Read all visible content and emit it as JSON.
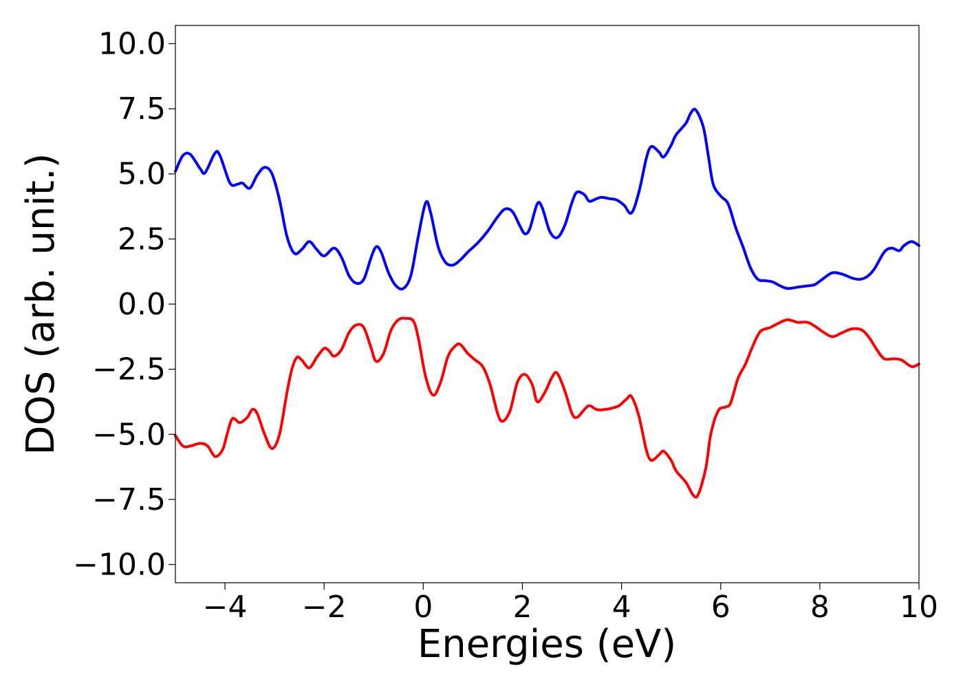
{
  "chart_data": {
    "type": "line",
    "title": "",
    "xlabel": "Energies (eV)",
    "ylabel": "DOS (arb. unit.)",
    "xlim": [
      -5,
      10
    ],
    "ylim": [
      -10.7,
      10.7
    ],
    "x_ticks": [
      -4,
      -2,
      0,
      2,
      4,
      6,
      8,
      10
    ],
    "x_tick_labels": [
      "−4",
      "−2",
      "0",
      "2",
      "4",
      "6",
      "8",
      "10"
    ],
    "y_ticks": [
      10.0,
      7.5,
      5.0,
      2.5,
      0.0,
      -2.5,
      -5.0,
      -7.5,
      -10.0
    ],
    "y_tick_labels": [
      "10.0",
      "7.5",
      "5.0",
      "2.5",
      "0.0",
      "−2.5",
      "−5.0",
      "−7.5",
      "−10.0"
    ],
    "grid": false,
    "legend": "none",
    "series": [
      {
        "color": "#0000ff",
        "points": [
          [
            -5.0,
            5.1
          ],
          [
            -4.85,
            5.7
          ],
          [
            -4.7,
            5.75
          ],
          [
            -4.5,
            5.2
          ],
          [
            -4.4,
            5.05
          ],
          [
            -4.2,
            5.8
          ],
          [
            -4.1,
            5.7
          ],
          [
            -3.9,
            4.65
          ],
          [
            -3.75,
            4.6
          ],
          [
            -3.65,
            4.65
          ],
          [
            -3.5,
            4.45
          ],
          [
            -3.35,
            4.95
          ],
          [
            -3.2,
            5.25
          ],
          [
            -3.05,
            5.0
          ],
          [
            -2.9,
            4.0
          ],
          [
            -2.75,
            2.6
          ],
          [
            -2.6,
            1.95
          ],
          [
            -2.45,
            2.1
          ],
          [
            -2.3,
            2.4
          ],
          [
            -2.15,
            2.1
          ],
          [
            -2.0,
            1.85
          ],
          [
            -1.8,
            2.15
          ],
          [
            -1.65,
            1.8
          ],
          [
            -1.5,
            1.1
          ],
          [
            -1.35,
            0.8
          ],
          [
            -1.2,
            0.95
          ],
          [
            -1.05,
            1.8
          ],
          [
            -0.95,
            2.2
          ],
          [
            -0.85,
            2.0
          ],
          [
            -0.7,
            1.2
          ],
          [
            -0.55,
            0.7
          ],
          [
            -0.4,
            0.6
          ],
          [
            -0.25,
            1.1
          ],
          [
            -0.1,
            2.6
          ],
          [
            0.05,
            3.9
          ],
          [
            0.15,
            3.5
          ],
          [
            0.3,
            2.2
          ],
          [
            0.45,
            1.6
          ],
          [
            0.6,
            1.5
          ],
          [
            0.75,
            1.7
          ],
          [
            0.9,
            2.0
          ],
          [
            1.1,
            2.35
          ],
          [
            1.3,
            2.8
          ],
          [
            1.5,
            3.35
          ],
          [
            1.65,
            3.65
          ],
          [
            1.8,
            3.55
          ],
          [
            1.95,
            3.0
          ],
          [
            2.05,
            2.7
          ],
          [
            2.15,
            2.9
          ],
          [
            2.3,
            3.85
          ],
          [
            2.4,
            3.7
          ],
          [
            2.55,
            2.8
          ],
          [
            2.7,
            2.55
          ],
          [
            2.85,
            3.0
          ],
          [
            3.0,
            3.9
          ],
          [
            3.1,
            4.3
          ],
          [
            3.25,
            4.2
          ],
          [
            3.35,
            3.95
          ],
          [
            3.5,
            4.05
          ],
          [
            3.6,
            4.1
          ],
          [
            3.75,
            4.05
          ],
          [
            3.9,
            4.0
          ],
          [
            4.05,
            3.8
          ],
          [
            4.2,
            3.5
          ],
          [
            4.35,
            4.3
          ],
          [
            4.5,
            5.6
          ],
          [
            4.6,
            6.05
          ],
          [
            4.75,
            5.85
          ],
          [
            4.85,
            5.65
          ],
          [
            5.0,
            6.1
          ],
          [
            5.1,
            6.5
          ],
          [
            5.3,
            6.95
          ],
          [
            5.4,
            7.35
          ],
          [
            5.5,
            7.45
          ],
          [
            5.65,
            6.8
          ],
          [
            5.75,
            5.7
          ],
          [
            5.85,
            4.6
          ],
          [
            6.0,
            4.15
          ],
          [
            6.15,
            3.85
          ],
          [
            6.3,
            2.95
          ],
          [
            6.45,
            2.2
          ],
          [
            6.6,
            1.4
          ],
          [
            6.75,
            0.95
          ],
          [
            6.9,
            0.9
          ],
          [
            7.05,
            0.85
          ],
          [
            7.2,
            0.7
          ],
          [
            7.35,
            0.6
          ],
          [
            7.55,
            0.65
          ],
          [
            7.75,
            0.7
          ],
          [
            7.9,
            0.75
          ],
          [
            8.05,
            0.95
          ],
          [
            8.25,
            1.2
          ],
          [
            8.45,
            1.15
          ],
          [
            8.65,
            1.0
          ],
          [
            8.8,
            0.95
          ],
          [
            8.95,
            1.05
          ],
          [
            9.1,
            1.35
          ],
          [
            9.3,
            2.0
          ],
          [
            9.45,
            2.15
          ],
          [
            9.6,
            2.05
          ],
          [
            9.7,
            2.25
          ],
          [
            9.85,
            2.4
          ],
          [
            10.0,
            2.25
          ]
        ]
      },
      {
        "color": "#ff0000",
        "points": [
          [
            -5.0,
            -5.05
          ],
          [
            -4.85,
            -5.45
          ],
          [
            -4.7,
            -5.45
          ],
          [
            -4.5,
            -5.35
          ],
          [
            -4.35,
            -5.45
          ],
          [
            -4.2,
            -5.85
          ],
          [
            -4.05,
            -5.6
          ],
          [
            -3.95,
            -4.95
          ],
          [
            -3.85,
            -4.4
          ],
          [
            -3.7,
            -4.55
          ],
          [
            -3.55,
            -4.35
          ],
          [
            -3.45,
            -4.05
          ],
          [
            -3.35,
            -4.2
          ],
          [
            -3.2,
            -5.0
          ],
          [
            -3.05,
            -5.55
          ],
          [
            -2.9,
            -5.0
          ],
          [
            -2.75,
            -3.4
          ],
          [
            -2.65,
            -2.5
          ],
          [
            -2.55,
            -2.05
          ],
          [
            -2.45,
            -2.15
          ],
          [
            -2.3,
            -2.45
          ],
          [
            -2.15,
            -2.05
          ],
          [
            -2.0,
            -1.7
          ],
          [
            -1.9,
            -1.8
          ],
          [
            -1.8,
            -2.0
          ],
          [
            -1.65,
            -1.75
          ],
          [
            -1.5,
            -1.1
          ],
          [
            -1.35,
            -0.8
          ],
          [
            -1.2,
            -0.9
          ],
          [
            -1.05,
            -1.7
          ],
          [
            -0.95,
            -2.2
          ],
          [
            -0.8,
            -1.9
          ],
          [
            -0.65,
            -1.0
          ],
          [
            -0.5,
            -0.6
          ],
          [
            -0.35,
            -0.55
          ],
          [
            -0.2,
            -0.65
          ],
          [
            -0.1,
            -1.3
          ],
          [
            0.05,
            -2.8
          ],
          [
            0.2,
            -3.5
          ],
          [
            0.35,
            -3.0
          ],
          [
            0.5,
            -2.0
          ],
          [
            0.65,
            -1.6
          ],
          [
            0.75,
            -1.55
          ],
          [
            0.9,
            -1.9
          ],
          [
            1.05,
            -2.15
          ],
          [
            1.2,
            -2.4
          ],
          [
            1.35,
            -3.1
          ],
          [
            1.5,
            -4.2
          ],
          [
            1.6,
            -4.5
          ],
          [
            1.75,
            -4.1
          ],
          [
            1.9,
            -3.0
          ],
          [
            2.05,
            -2.7
          ],
          [
            2.2,
            -3.1
          ],
          [
            2.3,
            -3.75
          ],
          [
            2.45,
            -3.4
          ],
          [
            2.6,
            -2.8
          ],
          [
            2.7,
            -2.65
          ],
          [
            2.85,
            -3.3
          ],
          [
            3.0,
            -4.2
          ],
          [
            3.1,
            -4.35
          ],
          [
            3.25,
            -4.05
          ],
          [
            3.35,
            -3.9
          ],
          [
            3.5,
            -4.05
          ],
          [
            3.65,
            -4.05
          ],
          [
            3.8,
            -4.0
          ],
          [
            3.95,
            -3.9
          ],
          [
            4.1,
            -3.65
          ],
          [
            4.2,
            -3.55
          ],
          [
            4.35,
            -4.3
          ],
          [
            4.5,
            -5.6
          ],
          [
            4.6,
            -6.0
          ],
          [
            4.75,
            -5.8
          ],
          [
            4.85,
            -5.65
          ],
          [
            5.0,
            -6.0
          ],
          [
            5.1,
            -6.4
          ],
          [
            5.3,
            -6.85
          ],
          [
            5.45,
            -7.35
          ],
          [
            5.55,
            -7.3
          ],
          [
            5.7,
            -6.3
          ],
          [
            5.8,
            -5.0
          ],
          [
            5.95,
            -4.1
          ],
          [
            6.1,
            -3.95
          ],
          [
            6.2,
            -3.8
          ],
          [
            6.35,
            -2.85
          ],
          [
            6.5,
            -2.3
          ],
          [
            6.65,
            -1.6
          ],
          [
            6.8,
            -1.05
          ],
          [
            7.0,
            -0.9
          ],
          [
            7.15,
            -0.75
          ],
          [
            7.35,
            -0.6
          ],
          [
            7.55,
            -0.7
          ],
          [
            7.75,
            -0.7
          ],
          [
            7.9,
            -0.85
          ],
          [
            8.05,
            -1.05
          ],
          [
            8.25,
            -1.25
          ],
          [
            8.45,
            -1.1
          ],
          [
            8.65,
            -0.95
          ],
          [
            8.85,
            -1.0
          ],
          [
            9.0,
            -1.3
          ],
          [
            9.15,
            -1.75
          ],
          [
            9.3,
            -2.1
          ],
          [
            9.5,
            -2.1
          ],
          [
            9.65,
            -2.15
          ],
          [
            9.85,
            -2.4
          ],
          [
            10.0,
            -2.3
          ]
        ]
      }
    ]
  }
}
